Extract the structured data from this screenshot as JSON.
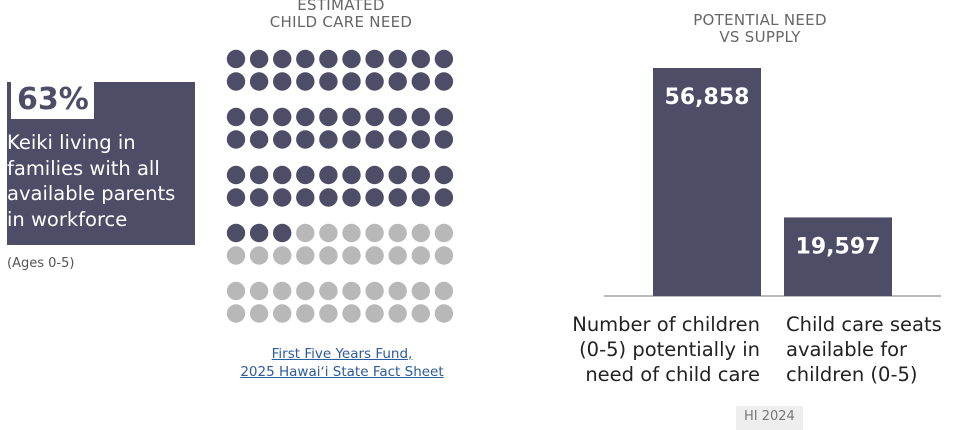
{
  "stat": {
    "percent": "63%",
    "lines": [
      "Keiki living in",
      "families with all",
      "available parents",
      "in workforce"
    ],
    "note": "(Ages 0-5)"
  },
  "dot_panel": {
    "title_lines": [
      "ESTIMATED",
      "CHILD CARE NEED"
    ],
    "total_dots": 100,
    "filled_dots": 63,
    "filled_color": "#4e4d68",
    "empty_color": "#b8b8b8",
    "source_lines": [
      "First Five Years Fund,",
      "2025 Hawaiʻi State Fact Sheet"
    ]
  },
  "bar_panel": {
    "title_lines": [
      "POTENTIAL NEED",
      "VS SUPPLY"
    ],
    "badge": "HI 2024",
    "category_a": [
      "Number of children",
      "(0-5) potentially in",
      "need of child care"
    ],
    "category_b": [
      "Child care seats",
      "available for",
      "children (0-5)"
    ]
  },
  "chart_data": [
    {
      "type": "bar",
      "categories": [
        "Number of children (0-5) potentially in need of child care",
        "Child care seats available for children (0-5)"
      ],
      "values": [
        56858,
        19597
      ],
      "value_labels": [
        "56,858",
        "19,597"
      ],
      "title": "POTENTIAL NEED VS SUPPLY",
      "xlabel": "",
      "ylabel": "",
      "ylim": [
        0,
        56858
      ],
      "grid": false,
      "color": "#4e4d68"
    },
    {
      "type": "waffle",
      "title": "ESTIMATED CHILD CARE NEED",
      "values": [
        63,
        37
      ],
      "categories": [
        "filled",
        "empty"
      ]
    }
  ]
}
